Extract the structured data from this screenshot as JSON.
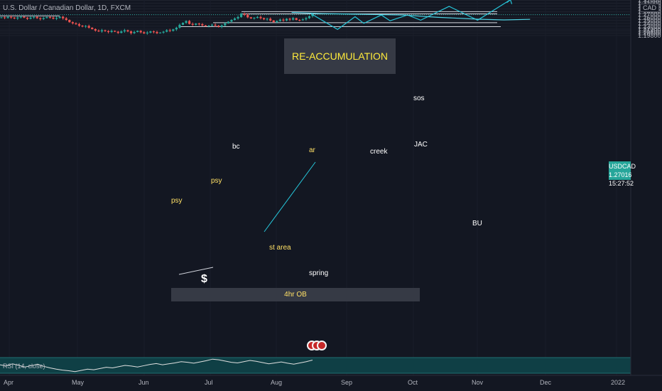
{
  "header": {
    "symbol_title": "U.S. Dollar / Canadian Dollar, 1D, FXCM",
    "currency": "CAD"
  },
  "annotations": {
    "title": "RE-ACCUMULATION",
    "sos": "sos",
    "jac": "JAC",
    "bc": "bc",
    "ar": "ar",
    "creek": "creek",
    "psy1": "psy",
    "psy2": "psy",
    "st_area": "st area",
    "spring": "spring",
    "bu": "BU",
    "ob": "4hr OB",
    "dollar": "$"
  },
  "price_badge": {
    "symbol": "USDCAD",
    "price": "1.27016",
    "countdown": "15:27:52"
  },
  "rsi": {
    "label": "RSI (14, close)"
  },
  "colors": {
    "up": "#26a69a",
    "down": "#ef5350",
    "projection": "#26c6da",
    "background": "#131722",
    "title_text": "#ffeb3b"
  },
  "chart_data": {
    "type": "candlestick",
    "x_ticks": [
      "Apr",
      "May",
      "Jun",
      "Jul",
      "Aug",
      "Sep",
      "Oct",
      "Nov",
      "Dec",
      "2022"
    ],
    "y_ticks": [
      "1.33000",
      "1.32000",
      "1.31000",
      "1.30000",
      "1.29000",
      "1.28000",
      "1.27000",
      "1.26000",
      "1.25000",
      "1.24000",
      "1.23000",
      "1.22000",
      "1.21400",
      "1.20600",
      "1.19800"
    ],
    "last_price": 1.27016,
    "closes": [
      1.261,
      1.2585,
      1.2625,
      1.26,
      1.257,
      1.2605,
      1.263,
      1.2595,
      1.256,
      1.26,
      1.2625,
      1.258,
      1.255,
      1.2585,
      1.262,
      1.26,
      1.256,
      1.259,
      1.263,
      1.2575,
      1.252,
      1.244,
      1.24,
      1.237,
      1.232,
      1.229,
      1.231,
      1.225,
      1.22,
      1.215,
      1.212,
      1.216,
      1.213,
      1.21,
      1.214,
      1.211,
      1.207,
      1.212,
      1.216,
      1.212,
      1.206,
      1.21,
      1.214,
      1.209,
      1.205,
      1.208,
      1.212,
      1.21,
      1.206,
      1.208,
      1.211,
      1.216,
      1.214,
      1.219,
      1.225,
      1.235,
      1.242,
      1.248,
      1.238,
      1.235,
      1.239,
      1.237,
      1.233,
      1.23,
      1.232,
      1.235,
      1.232,
      1.228,
      1.233,
      1.24,
      1.246,
      1.252,
      1.257,
      1.262,
      1.274,
      1.27,
      1.261,
      1.257,
      1.259,
      1.262,
      1.258,
      1.254,
      1.256,
      1.25,
      1.244,
      1.248,
      1.253,
      1.25,
      1.256,
      1.253,
      1.258,
      1.252,
      1.251,
      1.254,
      1.258,
      1.265,
      1.2702
    ],
    "levels": [
      {
        "price": 1.2658,
        "label": ""
      },
      {
        "price": 1.2806,
        "label": "JAC"
      },
      {
        "price": 1.273,
        "label": "creek"
      },
      {
        "price": 1.2425,
        "label": "st area"
      },
      {
        "price": 1.2285,
        "label": "spring"
      }
    ],
    "projection": [
      {
        "date": "2021-08-20",
        "price": 1.273
      },
      {
        "date": "2021-09-01",
        "price": 1.219
      },
      {
        "date": "2021-09-09",
        "price": 1.263
      },
      {
        "date": "2021-09-13",
        "price": 1.24
      },
      {
        "date": "2021-09-21",
        "price": 1.269
      },
      {
        "date": "2021-09-25",
        "price": 1.249
      },
      {
        "date": "2021-10-03",
        "price": 1.269
      },
      {
        "date": "2021-10-09",
        "price": 1.251
      },
      {
        "date": "2021-10-22",
        "price": 1.299
      },
      {
        "date": "2021-11-04",
        "price": 1.251
      },
      {
        "date": "2021-11-19",
        "price": 1.322
      }
    ],
    "moving_average": [
      {
        "date": "2021-08-11",
        "price": 1.278
      },
      {
        "date": "2021-08-25",
        "price": 1.274
      },
      {
        "date": "2021-09-09",
        "price": 1.272
      },
      {
        "date": "2021-10-01",
        "price": 1.269
      },
      {
        "date": "2021-10-17",
        "price": 1.261
      },
      {
        "date": "2021-11-04",
        "price": 1.2545
      },
      {
        "date": "2021-11-16",
        "price": 1.252
      },
      {
        "date": "2021-11-28",
        "price": 1.254
      }
    ],
    "rsi_values": [
      52,
      48,
      55,
      50,
      45,
      49,
      54,
      47,
      42,
      38,
      35,
      33,
      30,
      34,
      38,
      36,
      40,
      44,
      42,
      46,
      50,
      48,
      45,
      49,
      53,
      56,
      52,
      55,
      58,
      62,
      60,
      57,
      61,
      65,
      70,
      68,
      64,
      60,
      58,
      62,
      66,
      63,
      59,
      55,
      58,
      61,
      57,
      54,
      58,
      62,
      67
    ]
  }
}
